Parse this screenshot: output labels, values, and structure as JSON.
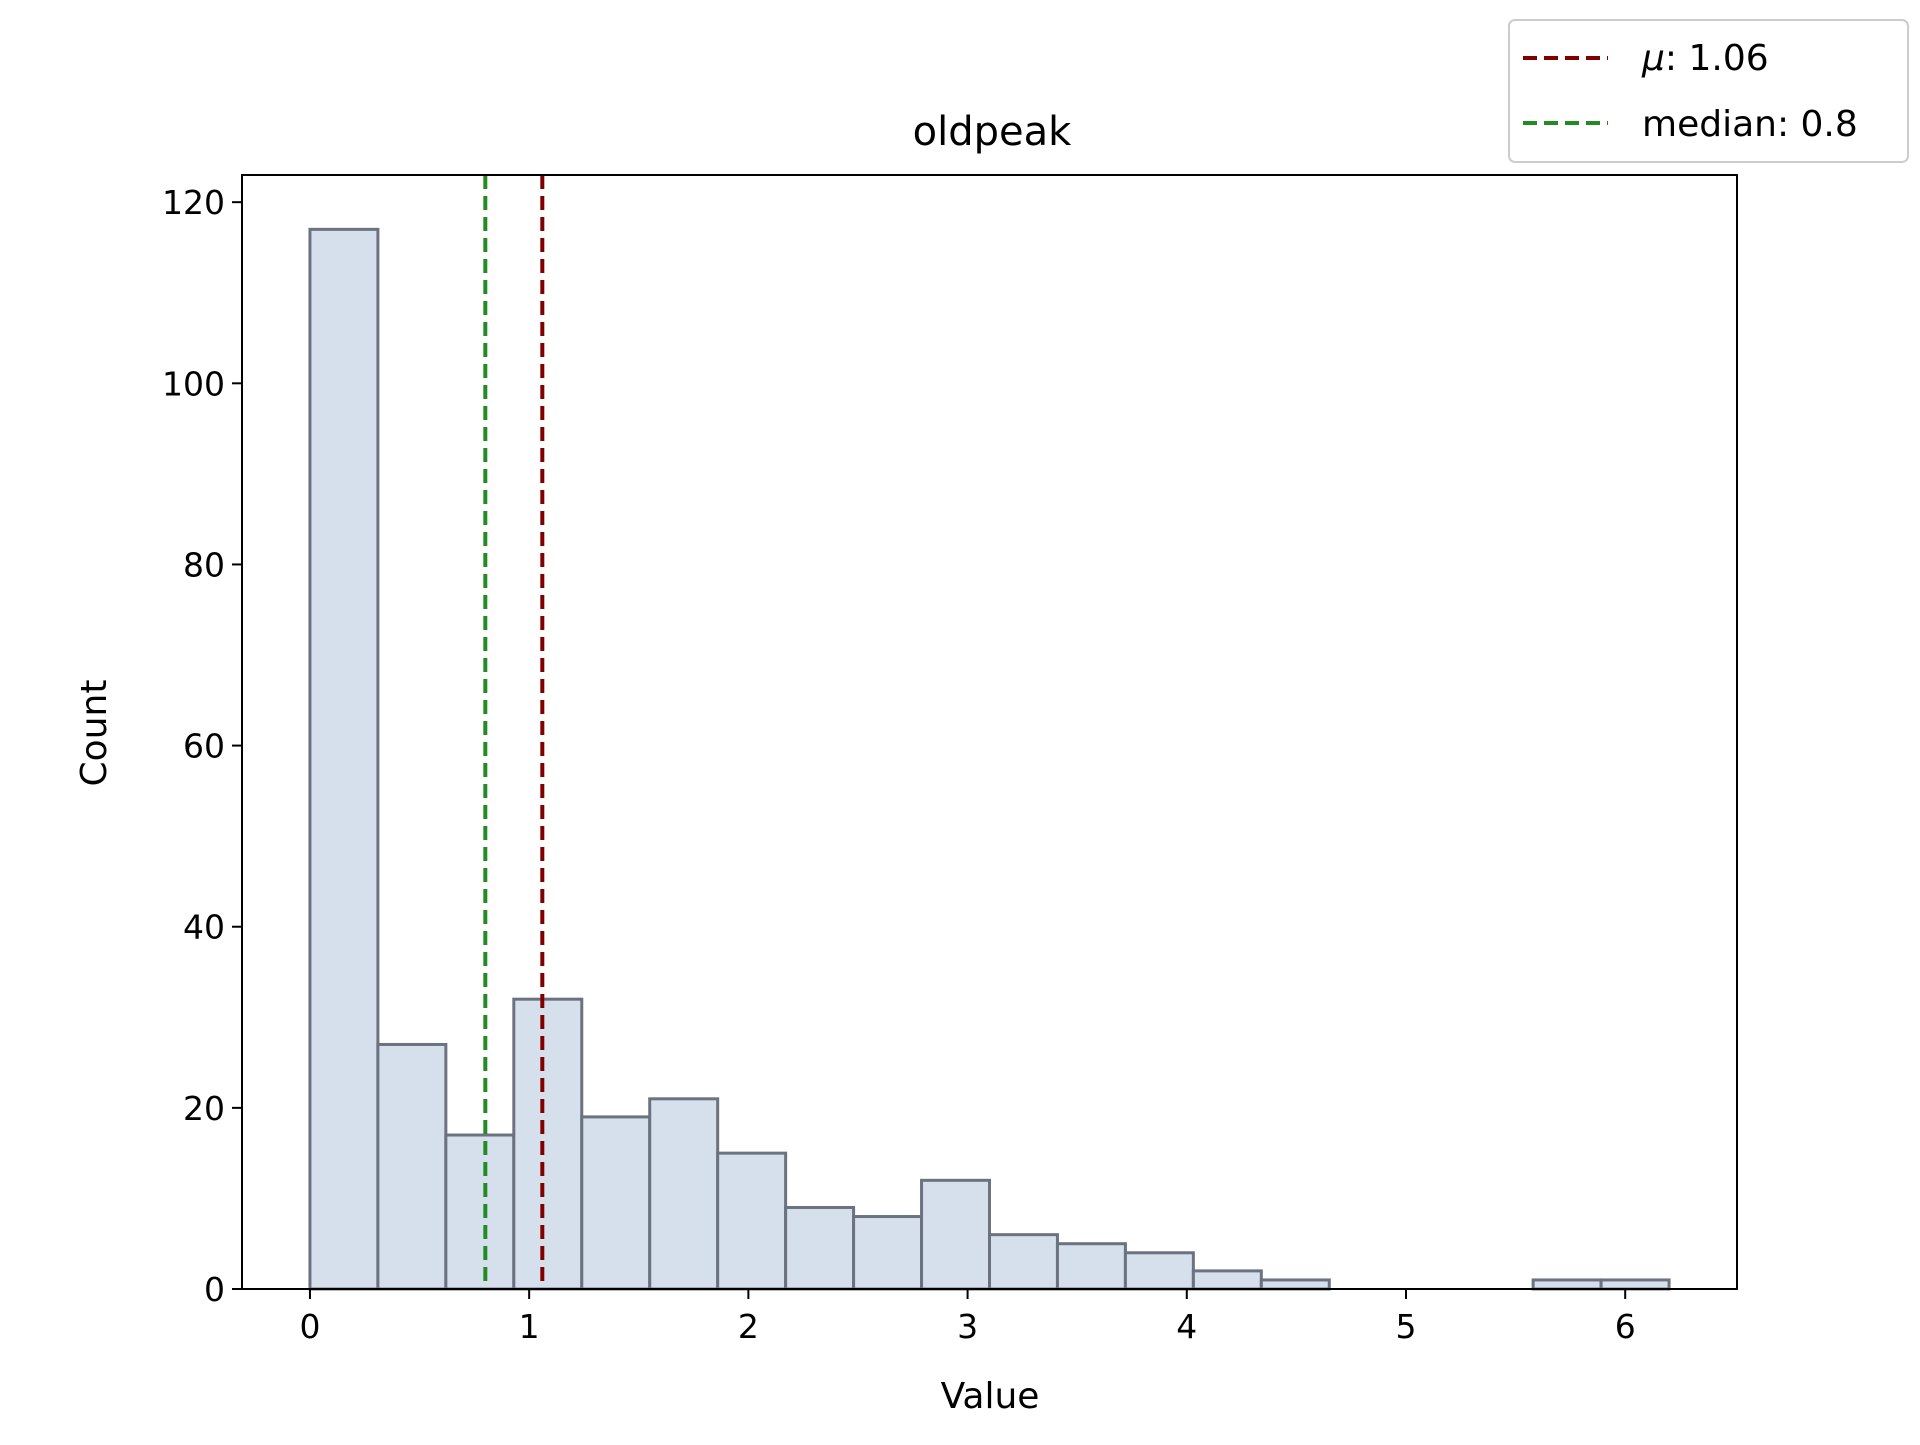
{
  "chart_data": {
    "type": "bar",
    "title": "oldpeak",
    "xlabel": "Value",
    "ylabel": "Count",
    "xlim": [
      -0.31,
      6.51
    ],
    "ylim": [
      0,
      123
    ],
    "x_ticks": [
      0,
      1,
      2,
      3,
      4,
      5,
      6
    ],
    "y_ticks": [
      0,
      20,
      40,
      60,
      80,
      100,
      120
    ],
    "bin_width": 0.31,
    "bins": [
      {
        "start": 0.0,
        "value": 117
      },
      {
        "start": 0.31,
        "value": 27
      },
      {
        "start": 0.62,
        "value": 17
      },
      {
        "start": 0.93,
        "value": 32
      },
      {
        "start": 1.24,
        "value": 19
      },
      {
        "start": 1.55,
        "value": 21
      },
      {
        "start": 1.86,
        "value": 15
      },
      {
        "start": 2.17,
        "value": 9
      },
      {
        "start": 2.48,
        "value": 8
      },
      {
        "start": 2.79,
        "value": 12
      },
      {
        "start": 3.1,
        "value": 6
      },
      {
        "start": 3.41,
        "value": 5
      },
      {
        "start": 3.72,
        "value": 4
      },
      {
        "start": 4.03,
        "value": 2
      },
      {
        "start": 4.34,
        "value": 1
      },
      {
        "start": 4.65,
        "value": 0
      },
      {
        "start": 4.96,
        "value": 0
      },
      {
        "start": 5.27,
        "value": 0
      },
      {
        "start": 5.58,
        "value": 1
      },
      {
        "start": 5.89,
        "value": 1
      }
    ],
    "bar_fill": "#d6e0ec",
    "bar_edge": "#6b7280",
    "grid": false,
    "legend_position": "top-right outside",
    "vlines": [
      {
        "name": "mean",
        "symbol": "μ",
        "label_text": ": 1.06",
        "x": 1.06,
        "color": "#800000"
      },
      {
        "name": "median",
        "symbol": "",
        "label_text": "median: 0.8",
        "x": 0.8,
        "color": "#228b22"
      }
    ]
  }
}
